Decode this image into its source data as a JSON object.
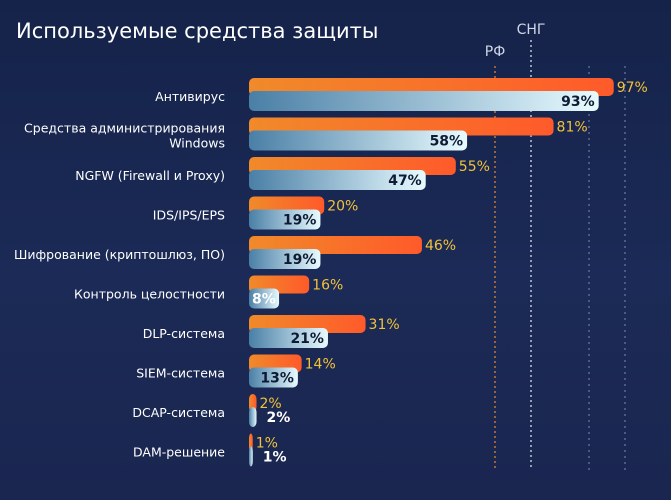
{
  "chart_data": {
    "type": "bar",
    "orientation": "horizontal",
    "title": "Используемые средства защиты",
    "categories": [
      "Антивирус",
      "Средства администрирования Windows",
      "NGFW (Firewall и Proxy)",
      "IDS/IPS/EPS",
      "Шифрование (криптошлюз, ПО)",
      "Контроль целостности",
      "DLP-система",
      "SIEM-система",
      "DCAP-система",
      "DAM-решение"
    ],
    "category_lines": [
      [
        "Антивирус"
      ],
      [
        "Средства администрирования",
        "Windows"
      ],
      [
        "NGFW (Firewall и Proxy)"
      ],
      [
        "IDS/IPS/EPS"
      ],
      [
        "Шифрование (криптошлюз, ПО)"
      ],
      [
        "Контроль целостности"
      ],
      [
        "DLP-система"
      ],
      [
        "SIEM-система"
      ],
      [
        "DCAP-система"
      ],
      [
        "DAM-решение"
      ]
    ],
    "series": [
      {
        "name": "СНГ",
        "values": [
          97,
          81,
          55,
          20,
          46,
          16,
          31,
          14,
          2,
          1
        ],
        "labels": [
          "97%",
          "81%",
          "55%",
          "20%",
          "46%",
          "16%",
          "31%",
          "14%",
          "2%",
          "1%"
        ],
        "color": "#ff5a2a",
        "color_start": "#f08a2a",
        "label_color": "#f2c23a"
      },
      {
        "name": "РФ",
        "values": [
          93,
          58,
          47,
          19,
          19,
          8,
          21,
          13,
          2,
          1
        ],
        "labels": [
          "93%",
          "58%",
          "47%",
          "19%",
          "19%",
          "8%",
          "21%",
          "13%",
          "2%",
          "1%"
        ],
        "color": "#e8fbff",
        "color_start": "#4a7fa6",
        "label_color": "#0f1a33"
      }
    ],
    "xlim": [
      0,
      100
    ],
    "grid": false,
    "legend": "top-right"
  }
}
